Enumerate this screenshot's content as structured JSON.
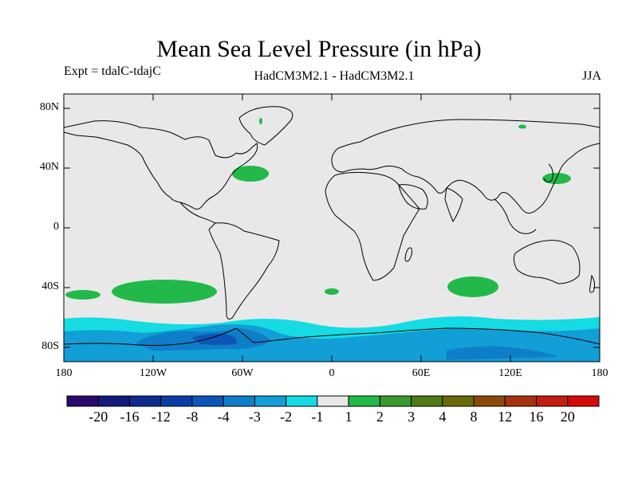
{
  "header": {
    "title": "Mean Sea Level Pressure (in hPa)",
    "experiment": "Expt = tdalC-tdajC",
    "models": "HadCM3M2.1 - HadCM3M2.1",
    "season": "JJA"
  },
  "axes": {
    "lat_labels": [
      "80N",
      "40N",
      "0",
      "40S",
      "80S"
    ],
    "lon_labels": [
      "180",
      "120W",
      "60W",
      "0",
      "60E",
      "120E",
      "180"
    ]
  },
  "colorbar": {
    "levels": [
      "-20",
      "-16",
      "-12",
      "-8",
      "-4",
      "-3",
      "-2",
      "-1",
      "1",
      "2",
      "3",
      "4",
      "8",
      "12",
      "16",
      "20"
    ],
    "colors": [
      "#2a0a6e",
      "#141a7a",
      "#0d2a8c",
      "#0a3ea6",
      "#0d56b8",
      "#0f7ec8",
      "#129ed6",
      "#15dbe3",
      "#e8e8e8",
      "#22b94a",
      "#3b9a2e",
      "#4f7a14",
      "#6b6a0a",
      "#8a4a0c",
      "#a83210",
      "#c41c10",
      "#d60a0a"
    ]
  },
  "colors": {
    "background_field": "#e8e8e8",
    "cyan_band": "#15dbe3",
    "light_blue": "#129ed6",
    "mid_blue": "#0f7ec8",
    "dark_blue": "#0d56b8",
    "green": "#22b94a",
    "coastline": "#000000"
  }
}
